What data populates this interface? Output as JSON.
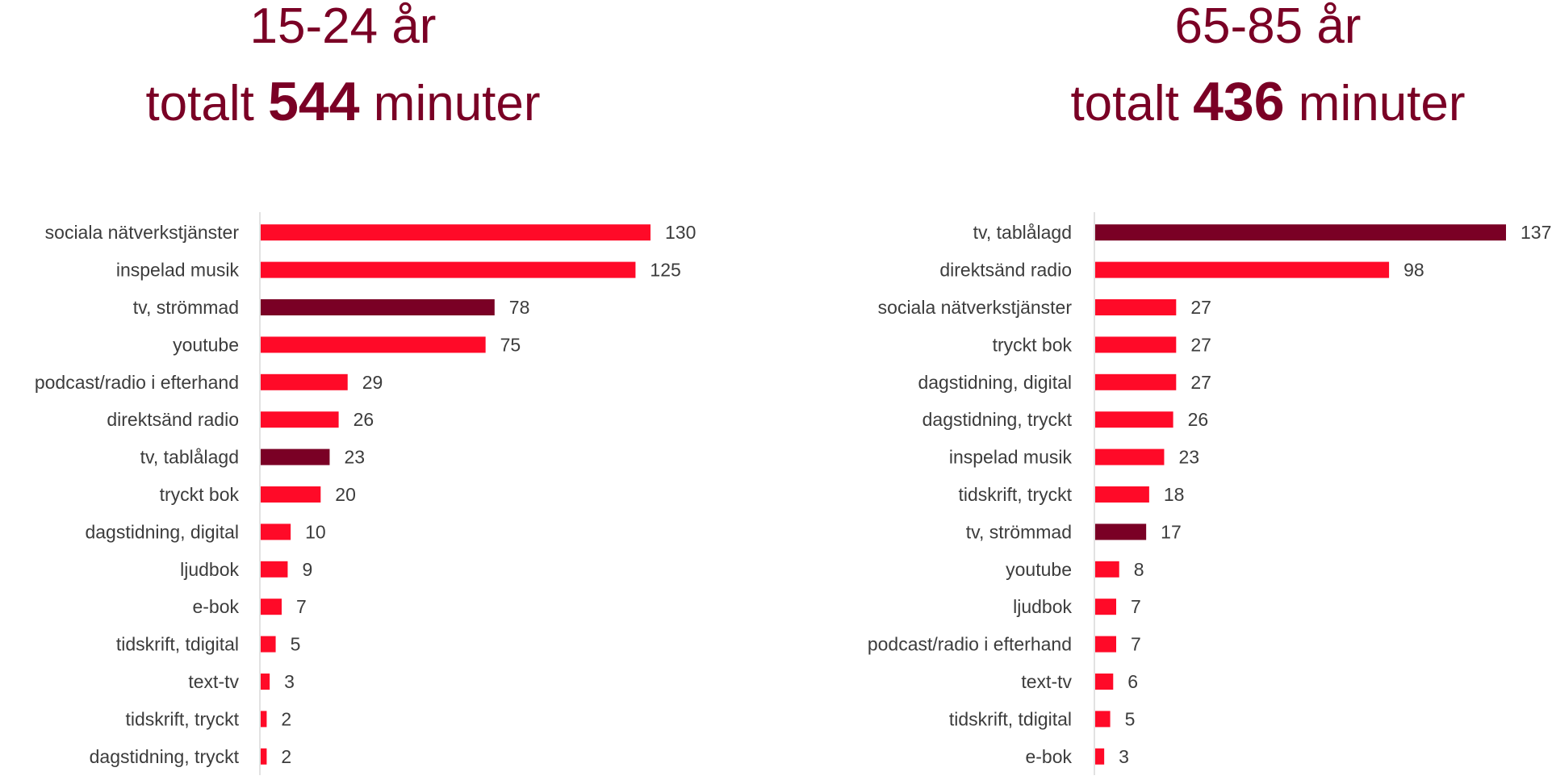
{
  "colors": {
    "normal": "#ff0a28",
    "highlight": "#7a0025",
    "axis": "#d9d9d9",
    "title": "#7a0025"
  },
  "chart_data": [
    {
      "type": "bar",
      "orientation": "horizontal",
      "title_line1": "15-24 år",
      "title_prefix": "totalt",
      "title_total": "544",
      "title_suffix": "minuter",
      "categories": [
        "sociala nätverkstjänster",
        "inspelad musik",
        "tv, strömmad",
        "youtube",
        "podcast/radio i efterhand",
        "direktsänd radio",
        "tv, tablålagd",
        "tryckt bok",
        "dagstidning, digital",
        "ljudbok",
        "e-bok",
        "tidskrift, tdigital",
        "text-tv",
        "tidskrift, tryckt",
        "dagstidning, tryckt"
      ],
      "values": [
        130,
        125,
        78,
        75,
        29,
        26,
        23,
        20,
        10,
        9,
        7,
        5,
        3,
        2,
        2
      ],
      "highlight": [
        "tv, strömmad",
        "tv, tablålagd"
      ],
      "xlim": [
        0,
        130
      ],
      "grid": false
    },
    {
      "type": "bar",
      "orientation": "horizontal",
      "title_line1": "65-85 år",
      "title_prefix": "totalt",
      "title_total": "436",
      "title_suffix": "minuter",
      "categories": [
        "tv, tablålagd",
        "direktsänd radio",
        "sociala nätverkstjänster",
        "tryckt bok",
        "dagstidning, digital",
        "dagstidning, tryckt",
        "inspelad musik",
        "tidskrift, tryckt",
        "tv, strömmad",
        "youtube",
        "ljudbok",
        "podcast/radio i efterhand",
        "text-tv",
        "tidskrift, tdigital",
        "e-bok"
      ],
      "values": [
        137,
        98,
        27,
        27,
        27,
        26,
        23,
        18,
        17,
        8,
        7,
        7,
        6,
        5,
        3
      ],
      "highlight": [
        "tv, tablålagd",
        "tv, strömmad"
      ],
      "xlim": [
        0,
        137
      ],
      "grid": false
    }
  ]
}
